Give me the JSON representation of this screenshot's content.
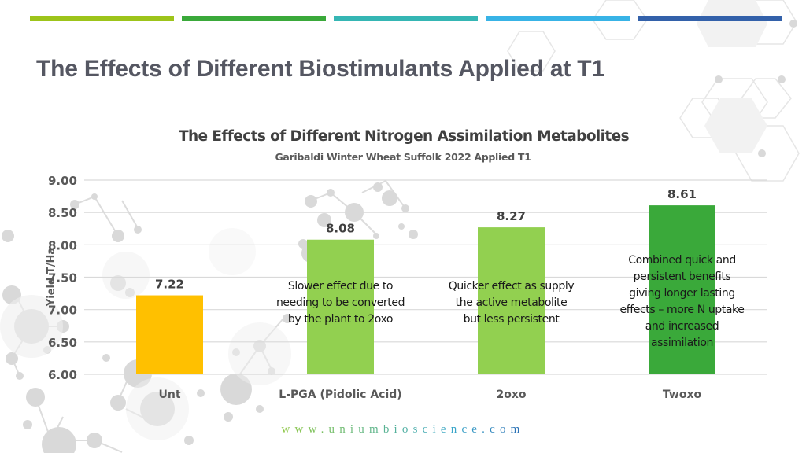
{
  "slide": {
    "title": "The Effects of Different Biostimulants Applied at T1",
    "stripe_colors": [
      "#9dc41a",
      "#3aa93a",
      "#35b6b4",
      "#38b3e6",
      "#3361aa"
    ],
    "footer_url": "www.uniumbioscience.com"
  },
  "chart_data": {
    "type": "bar",
    "title": "The Effects of Different Nitrogen Assimilation Metabolites",
    "subtitle": "Garibaldi Winter Wheat Suffolk 2022 Applied T1",
    "xlabel": "",
    "ylabel": "Yield T/Ha",
    "ylim": [
      6.0,
      9.0
    ],
    "yticks": [
      "6.00",
      "6.50",
      "7.00",
      "7.50",
      "8.00",
      "8.50",
      "9.00"
    ],
    "ytick_values": [
      6.0,
      6.5,
      7.0,
      7.5,
      8.0,
      8.5,
      9.0
    ],
    "grid": true,
    "categories": [
      "Unt",
      "L-PGA (Pidolic Acid)",
      "2oxo",
      "Twoxo"
    ],
    "values": [
      7.22,
      8.08,
      8.27,
      8.61
    ],
    "data_labels": [
      "7.22",
      "8.08",
      "8.27",
      "8.61"
    ],
    "bar_colors": [
      "#ffc000",
      "#92d050",
      "#92d050",
      "#3aa93a"
    ],
    "annotations": [
      {
        "category": "L-PGA (Pidolic Acid)",
        "lines": [
          "Slower effect due to",
          "needing to be converted",
          "by the plant to 2oxo"
        ]
      },
      {
        "category": "2oxo",
        "lines": [
          "Quicker effect as supply",
          "the active metabolite",
          "but less persistent"
        ]
      },
      {
        "category": "Twoxo",
        "lines": [
          "Combined quick and",
          "persistent benefits",
          "giving longer lasting",
          "effects – more N uptake",
          "and increased",
          "assimilation"
        ]
      }
    ]
  }
}
